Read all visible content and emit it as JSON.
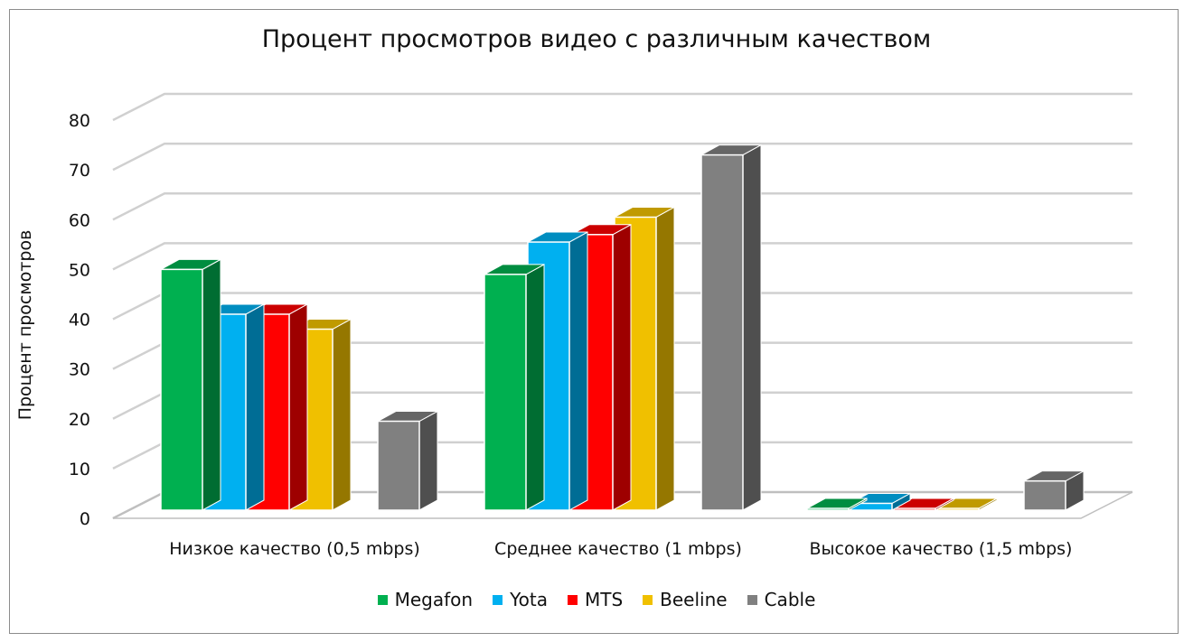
{
  "chart_data": {
    "type": "bar",
    "title": "Процент просмотров видео с различным качеством",
    "ylabel": "Процент просмотров",
    "xlabel": "",
    "ylim": [
      0,
      80
    ],
    "yticks": [
      "0",
      "10",
      "20",
      "30",
      "40",
      "50",
      "60",
      "70",
      "80"
    ],
    "categories": [
      "Низкое качество (0,5 mbps)",
      "Среднее качество (1 mbps)",
      "Высокое качество (1,5 mbps)"
    ],
    "series": [
      {
        "name": "Megafon",
        "color": "#00b050",
        "values": [
          50,
          49,
          1
        ]
      },
      {
        "name": "Yota",
        "color": "#00b0f0",
        "values": [
          41,
          55.5,
          3
        ]
      },
      {
        "name": "MTS",
        "color": "#ff0000",
        "values": [
          41,
          57,
          1.5
        ]
      },
      {
        "name": "Beeline",
        "color": "#f0c000",
        "values": [
          38,
          60.5,
          1.5
        ]
      },
      {
        "name": "Cable",
        "color": "#808080",
        "values": [
          19.5,
          73,
          7.5
        ]
      }
    ],
    "grid": true,
    "legend_position": "bottom",
    "style": "3d-clustered-column"
  }
}
